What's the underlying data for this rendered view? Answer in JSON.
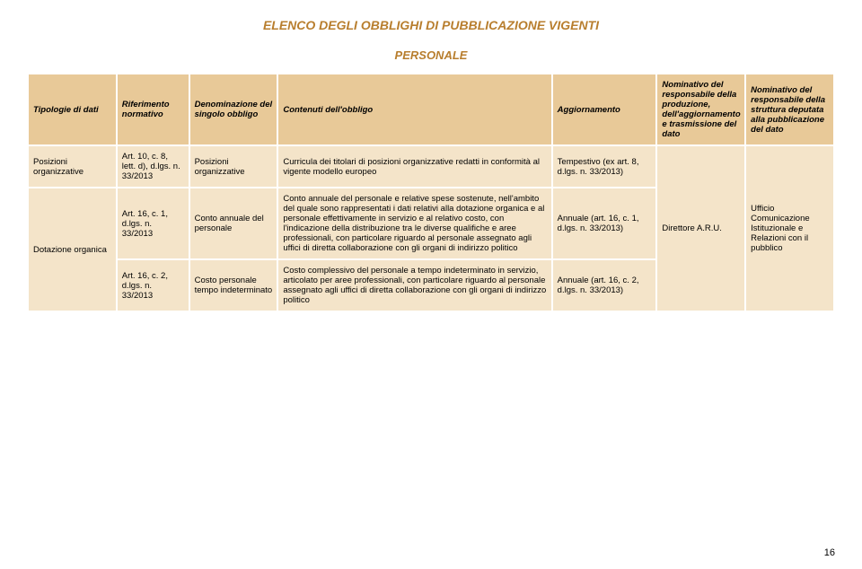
{
  "titles": {
    "main": "ELENCO DEGLI OBBLIGHI DI PUBBLICAZIONE VIGENTI",
    "section": "PERSONALE"
  },
  "columns": [
    "Tipologie di dati",
    "Riferimento normativo",
    "Denominazione del singolo obbligo",
    "Contenuti dell'obbligo",
    "Aggiornamento",
    "Nominativo del responsabile della produzione, dell'aggiornamento e trasmissione del dato",
    "Nominativo del responsabile della struttura deputata alla pubblicazione del dato"
  ],
  "rows": [
    {
      "c0": "Posizioni organizzative",
      "c1": "Art. 10, c. 8, lett. d), d.lgs. n. 33/2013",
      "c2": "Posizioni organizzative",
      "c3": "Curricula dei titolari di posizioni organizzative redatti in conformità al vigente modello europeo",
      "c4": "Tempestivo (ex art. 8, d.lgs. n. 33/2013)"
    },
    {
      "c0": "Dotazione organica",
      "c1": "Art. 16, c. 1, d.lgs. n. 33/2013",
      "c2": "Conto annuale del personale",
      "c3": "Conto annuale del personale e relative spese sostenute, nell'ambito del quale sono rappresentati i dati relativi alla dotazione organica e al personale effettivamente in servizio e al relativo costo, con l'indicazione della distribuzione tra le diverse qualifiche e aree professionali, con particolare riguardo al personale assegnato agli uffici di diretta collaborazione con gli organi di indirizzo politico",
      "c4": "Annuale (art. 16, c. 1, d.lgs. n. 33/2013)",
      "c5": "Direttore A.R.U.",
      "c6": "Ufficio Comunicazione Istituzionale e Relazioni con il pubblico"
    },
    {
      "c1": "Art. 16, c. 2, d.lgs. n. 33/2013",
      "c2": "Costo personale tempo indeterminato",
      "c3": "Costo complessivo del personale a tempo indeterminato in servizio, articolato per aree professionali, con particolare riguardo al personale assegnato agli uffici di diretta collaborazione con gli organi di indirizzo politico",
      "c4": "Annuale (art. 16, c. 2, d.lgs. n. 33/2013)"
    }
  ],
  "pagenum": "16",
  "style": {
    "header_bg": "#e8c998",
    "cell_bg": "#f4e4c9",
    "title_color": "#b87e2e",
    "border_color": "#ffffff",
    "font_family": "Arial, sans-serif",
    "title_fontsize": 14,
    "section_fontsize": 13,
    "cell_fontsize": 9.5
  }
}
